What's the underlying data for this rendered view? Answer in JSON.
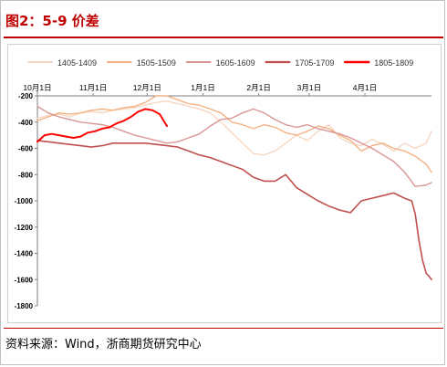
{
  "header": {
    "title": "图2：5-9 价差"
  },
  "footer": {
    "source": "资料来源：Wind，浙商期货研究中心"
  },
  "chart_data": {
    "type": "line",
    "title": "图2：5-9 价差",
    "xlabel": "",
    "ylabel": "",
    "x_ticks": [
      "10月1日",
      "11月1日",
      "12月1日",
      "1月1日",
      "2月1日",
      "3月1日",
      "4月1日"
    ],
    "x_tick_days": [
      0,
      31,
      61,
      92,
      123,
      151,
      182
    ],
    "x_range_days": [
      0,
      219
    ],
    "ylim": [
      -1800,
      -200
    ],
    "y_ticks": [
      -200,
      -400,
      -600,
      -800,
      -1000,
      -1200,
      -1400,
      -1600,
      -1800
    ],
    "grid": false,
    "legend_position": "top",
    "series": [
      {
        "name": "1405-1409",
        "color": "#f5d7c4",
        "width": 1.4,
        "x": [
          0,
          6,
          12,
          18,
          24,
          30,
          36,
          42,
          48,
          54,
          60,
          66,
          72,
          78,
          84,
          90,
          96,
          102,
          108,
          114,
          120,
          126,
          132,
          138,
          144,
          150,
          156,
          162,
          168,
          174,
          180,
          186,
          192,
          198,
          204,
          210,
          216,
          219
        ],
        "y": [
          -370,
          -350,
          -340,
          -360,
          -330,
          -320,
          -330,
          -310,
          -300,
          -290,
          -270,
          -250,
          -240,
          -260,
          -280,
          -300,
          -330,
          -400,
          -480,
          -560,
          -640,
          -650,
          -620,
          -560,
          -500,
          -540,
          -470,
          -420,
          -520,
          -560,
          -580,
          -530,
          -570,
          -620,
          -560,
          -600,
          -560,
          -470
        ]
      },
      {
        "name": "1505-1509",
        "color": "#f4b183",
        "width": 1.4,
        "x": [
          0,
          6,
          12,
          18,
          24,
          30,
          36,
          42,
          48,
          54,
          60,
          66,
          72,
          78,
          84,
          90,
          96,
          102,
          108,
          114,
          120,
          126,
          132,
          138,
          144,
          150,
          156,
          162,
          168,
          174,
          180,
          186,
          192,
          198,
          204,
          210,
          216,
          219
        ],
        "y": [
          -390,
          -360,
          -330,
          -340,
          -330,
          -310,
          -300,
          -310,
          -290,
          -280,
          -250,
          -200,
          -200,
          -230,
          -260,
          -270,
          -300,
          -330,
          -400,
          -420,
          -450,
          -420,
          -440,
          -480,
          -500,
          -470,
          -430,
          -450,
          -500,
          -540,
          -620,
          -580,
          -560,
          -600,
          -620,
          -660,
          -720,
          -780
        ]
      },
      {
        "name": "1605-1609",
        "color": "#d99694",
        "width": 1.4,
        "x": [
          0,
          6,
          12,
          18,
          24,
          30,
          36,
          42,
          48,
          54,
          60,
          66,
          72,
          78,
          84,
          90,
          96,
          102,
          108,
          114,
          120,
          126,
          132,
          138,
          144,
          150,
          156,
          162,
          168,
          174,
          180,
          186,
          192,
          198,
          204,
          210,
          216,
          219
        ],
        "y": [
          -280,
          -330,
          -360,
          -380,
          -400,
          -410,
          -420,
          -440,
          -470,
          -500,
          -520,
          -540,
          -560,
          -550,
          -520,
          -490,
          -430,
          -380,
          -370,
          -330,
          -300,
          -330,
          -380,
          -420,
          -440,
          -420,
          -450,
          -470,
          -490,
          -520,
          -560,
          -600,
          -650,
          -700,
          -780,
          -890,
          -880,
          -860
        ]
      },
      {
        "name": "1705-1709",
        "color": "#c0504d",
        "width": 1.6,
        "x": [
          0,
          6,
          12,
          18,
          24,
          30,
          36,
          42,
          48,
          54,
          60,
          66,
          72,
          78,
          84,
          90,
          96,
          102,
          108,
          114,
          120,
          126,
          132,
          138,
          144,
          150,
          156,
          162,
          168,
          174,
          180,
          186,
          192,
          198,
          204,
          208,
          210,
          212,
          214,
          216,
          218,
          219
        ],
        "y": [
          -540,
          -550,
          -560,
          -570,
          -580,
          -590,
          -580,
          -560,
          -560,
          -560,
          -560,
          -570,
          -580,
          -590,
          -620,
          -650,
          -670,
          -700,
          -730,
          -760,
          -820,
          -850,
          -850,
          -800,
          -900,
          -950,
          -1000,
          -1040,
          -1070,
          -1090,
          -1000,
          -980,
          -960,
          -940,
          -980,
          -1000,
          -1100,
          -1300,
          -1450,
          -1550,
          -1580,
          -1600
        ]
      },
      {
        "name": "1805-1809",
        "color": "#ff0000",
        "width": 2.0,
        "x": [
          0,
          4,
          8,
          12,
          16,
          20,
          24,
          28,
          32,
          36,
          40,
          44,
          48,
          52,
          56,
          60,
          64,
          68,
          72
        ],
        "y": [
          -550,
          -500,
          -490,
          -500,
          -510,
          -520,
          -510,
          -480,
          -470,
          -450,
          -440,
          -410,
          -390,
          -360,
          -320,
          -300,
          -310,
          -340,
          -430
        ]
      }
    ]
  }
}
